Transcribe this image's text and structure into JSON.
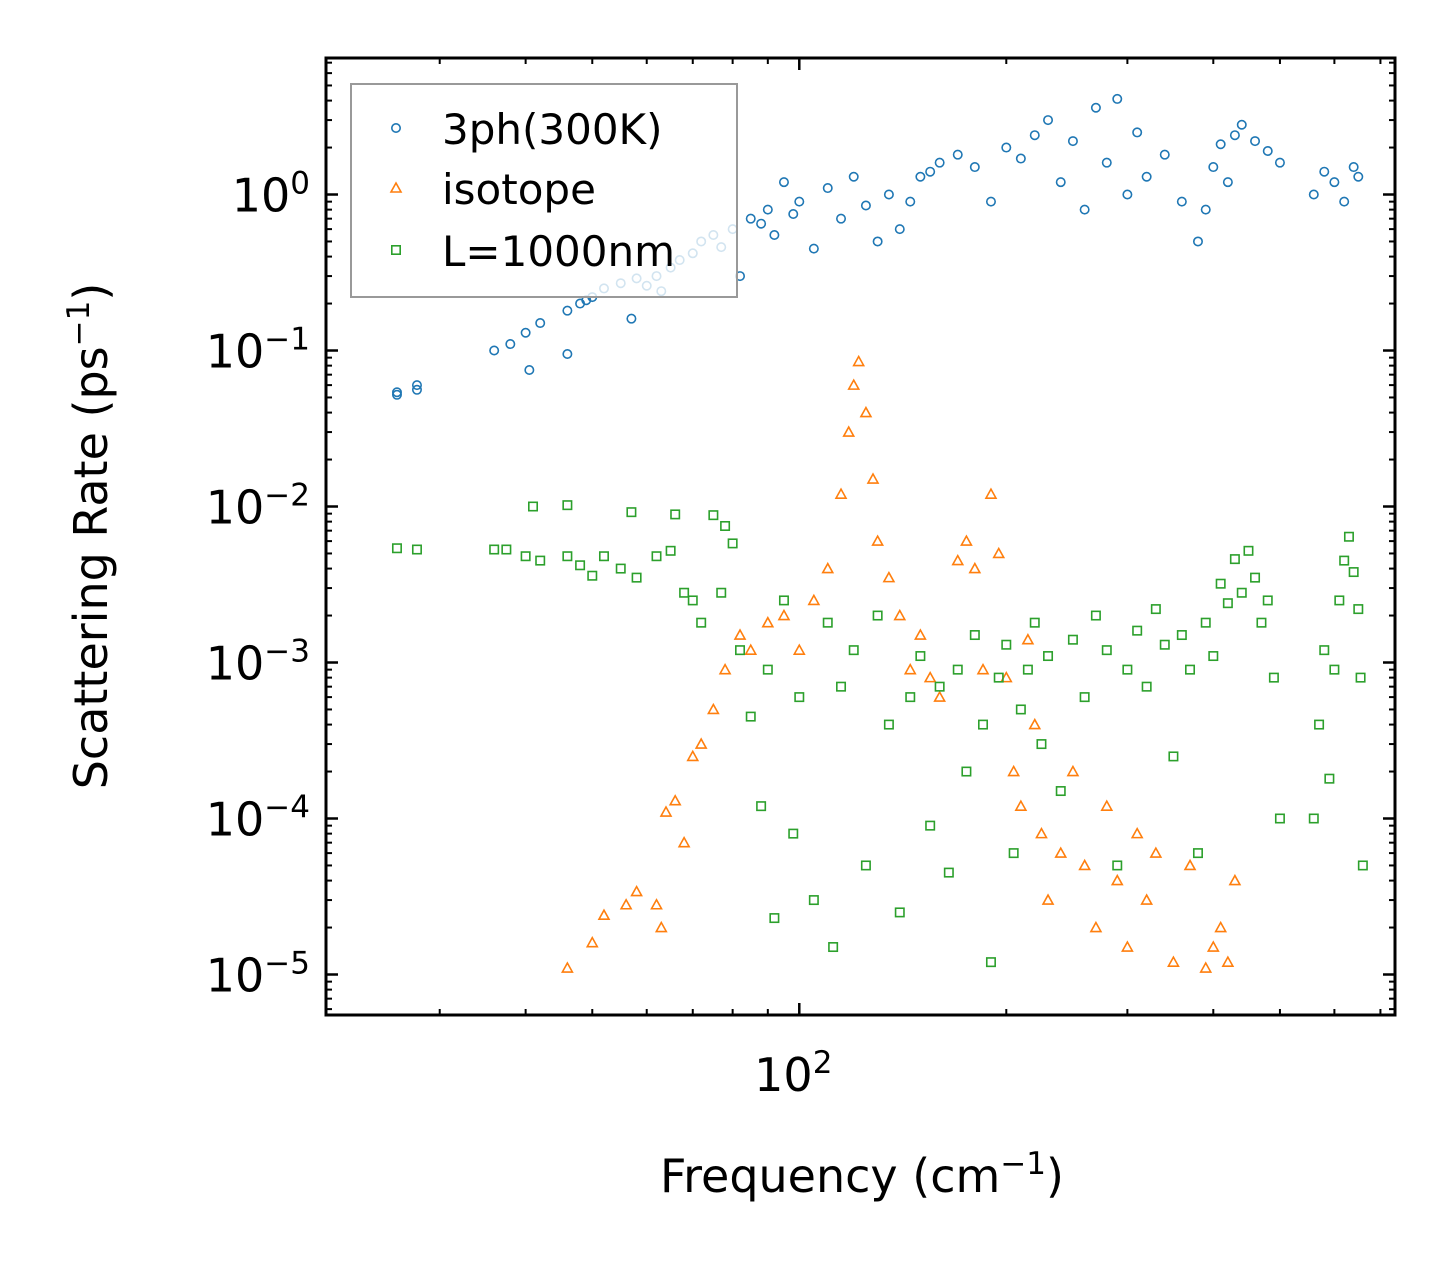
{
  "chart_data": {
    "type": "scatter",
    "title": "",
    "xlabel": "Frequency (cm",
    "xlabel_sup": "−1",
    "xlabel_tail": ")",
    "ylabel": "Scattering Rate (ps",
    "ylabel_sup": "−1",
    "ylabel_tail": ")",
    "xscale": "log",
    "yscale": "log",
    "xlim": [
      20.5,
      735
    ],
    "ylim": [
      5.5e-06,
      7.5
    ],
    "grid": false,
    "legend_position": "top-left",
    "x_major_ticks": [
      {
        "base": "10",
        "exp": "2",
        "value": 100
      }
    ],
    "y_major_ticks": [
      {
        "base": "10",
        "exp": "0",
        "value": 1
      },
      {
        "base": "10",
        "exp": "−1",
        "value": 0.1
      },
      {
        "base": "10",
        "exp": "−2",
        "value": 0.01
      },
      {
        "base": "10",
        "exp": "−3",
        "value": 0.001
      },
      {
        "base": "10",
        "exp": "−4",
        "value": 0.0001
      },
      {
        "base": "10",
        "exp": "−5",
        "value": 1e-05
      }
    ],
    "series": [
      {
        "name": "3ph(300K)",
        "marker": "circle",
        "color": "#1f77b4",
        "points": [
          [
            26,
            0.052
          ],
          [
            26,
            0.054
          ],
          [
            27.8,
            0.056
          ],
          [
            27.8,
            0.06
          ],
          [
            36,
            0.1
          ],
          [
            38,
            0.11
          ],
          [
            40,
            0.13
          ],
          [
            40.5,
            0.075
          ],
          [
            42,
            0.15
          ],
          [
            46,
            0.18
          ],
          [
            46,
            0.095
          ],
          [
            48,
            0.2
          ],
          [
            49,
            0.21
          ],
          [
            50,
            0.22
          ],
          [
            52,
            0.25
          ],
          [
            55,
            0.27
          ],
          [
            57,
            0.16
          ],
          [
            58,
            0.29
          ],
          [
            60,
            0.26
          ],
          [
            62,
            0.3
          ],
          [
            63,
            0.24
          ],
          [
            65,
            0.34
          ],
          [
            67,
            0.38
          ],
          [
            70,
            0.42
          ],
          [
            72,
            0.5
          ],
          [
            75,
            0.55
          ],
          [
            77,
            0.46
          ],
          [
            80,
            0.6
          ],
          [
            82,
            0.3
          ],
          [
            85,
            0.7
          ],
          [
            88,
            0.65
          ],
          [
            90,
            0.8
          ],
          [
            92,
            0.55
          ],
          [
            95,
            1.2
          ],
          [
            98,
            0.75
          ],
          [
            100,
            0.9
          ],
          [
            105,
            0.45
          ],
          [
            110,
            1.1
          ],
          [
            115,
            0.7
          ],
          [
            120,
            1.3
          ],
          [
            125,
            0.85
          ],
          [
            130,
            0.5
          ],
          [
            135,
            1.0
          ],
          [
            140,
            0.6
          ],
          [
            145,
            0.9
          ],
          [
            150,
            1.3
          ],
          [
            155,
            1.4
          ],
          [
            160,
            1.6
          ],
          [
            170,
            1.8
          ],
          [
            180,
            1.5
          ],
          [
            190,
            0.9
          ],
          [
            200,
            2.0
          ],
          [
            210,
            1.7
          ],
          [
            220,
            2.4
          ],
          [
            230,
            3.0
          ],
          [
            240,
            1.2
          ],
          [
            250,
            2.2
          ],
          [
            260,
            0.8
          ],
          [
            270,
            3.6
          ],
          [
            280,
            1.6
          ],
          [
            290,
            4.1
          ],
          [
            300,
            1.0
          ],
          [
            310,
            2.5
          ],
          [
            320,
            1.3
          ],
          [
            340,
            1.8
          ],
          [
            360,
            0.9
          ],
          [
            380,
            0.5
          ],
          [
            390,
            0.8
          ],
          [
            400,
            1.5
          ],
          [
            410,
            2.1
          ],
          [
            420,
            1.2
          ],
          [
            430,
            2.4
          ],
          [
            440,
            2.8
          ],
          [
            460,
            2.2
          ],
          [
            480,
            1.9
          ],
          [
            500,
            1.6
          ],
          [
            560,
            1.0
          ],
          [
            580,
            1.4
          ],
          [
            600,
            1.2
          ],
          [
            620,
            0.9
          ],
          [
            640,
            1.5
          ],
          [
            650,
            1.3
          ]
        ]
      },
      {
        "name": "isotope",
        "marker": "triangle",
        "color": "#ff7f0e",
        "points": [
          [
            46,
            1.1e-05
          ],
          [
            50,
            1.6e-05
          ],
          [
            52,
            2.4e-05
          ],
          [
            56,
            2.8e-05
          ],
          [
            58,
            3.4e-05
          ],
          [
            62,
            2.8e-05
          ],
          [
            63,
            2e-05
          ],
          [
            64,
            0.00011
          ],
          [
            66,
            0.00013
          ],
          [
            68,
            7e-05
          ],
          [
            70,
            0.00025
          ],
          [
            72,
            0.0003
          ],
          [
            75,
            0.0005
          ],
          [
            78,
            0.0009
          ],
          [
            82,
            0.0015
          ],
          [
            85,
            0.0012
          ],
          [
            90,
            0.0018
          ],
          [
            95,
            0.002
          ],
          [
            100,
            0.0012
          ],
          [
            105,
            0.0025
          ],
          [
            110,
            0.004
          ],
          [
            115,
            0.012
          ],
          [
            118,
            0.03
          ],
          [
            120,
            0.06
          ],
          [
            122,
            0.085
          ],
          [
            125,
            0.04
          ],
          [
            128,
            0.015
          ],
          [
            130,
            0.006
          ],
          [
            135,
            0.0035
          ],
          [
            140,
            0.002
          ],
          [
            145,
            0.0009
          ],
          [
            150,
            0.0015
          ],
          [
            155,
            0.0008
          ],
          [
            160,
            0.0006
          ],
          [
            170,
            0.0045
          ],
          [
            175,
            0.006
          ],
          [
            180,
            0.004
          ],
          [
            185,
            0.0009
          ],
          [
            190,
            0.012
          ],
          [
            195,
            0.005
          ],
          [
            200,
            0.0008
          ],
          [
            205,
            0.0002
          ],
          [
            210,
            0.00012
          ],
          [
            215,
            0.0014
          ],
          [
            220,
            0.0004
          ],
          [
            225,
            8e-05
          ],
          [
            230,
            3e-05
          ],
          [
            240,
            6e-05
          ],
          [
            250,
            0.0002
          ],
          [
            260,
            5e-05
          ],
          [
            270,
            2e-05
          ],
          [
            280,
            0.00012
          ],
          [
            290,
            4e-05
          ],
          [
            300,
            1.5e-05
          ],
          [
            310,
            8e-05
          ],
          [
            320,
            3e-05
          ],
          [
            330,
            6e-05
          ],
          [
            350,
            1.2e-05
          ],
          [
            370,
            5e-05
          ],
          [
            390,
            1.1e-05
          ],
          [
            400,
            1.5e-05
          ],
          [
            410,
            2e-05
          ],
          [
            420,
            1.2e-05
          ],
          [
            430,
            4e-05
          ]
        ]
      },
      {
        "name": "L=1000nm",
        "marker": "square",
        "color": "#2ca02c",
        "points": [
          [
            26,
            0.0054
          ],
          [
            27.8,
            0.0053
          ],
          [
            36,
            0.0053
          ],
          [
            37.5,
            0.0053
          ],
          [
            40,
            0.0048
          ],
          [
            41,
            0.01
          ],
          [
            42,
            0.0045
          ],
          [
            46,
            0.0102
          ],
          [
            46,
            0.0048
          ],
          [
            48,
            0.0042
          ],
          [
            50,
            0.0036
          ],
          [
            52,
            0.0048
          ],
          [
            55,
            0.004
          ],
          [
            57,
            0.0092
          ],
          [
            58,
            0.0035
          ],
          [
            62,
            0.0048
          ],
          [
            65,
            0.0052
          ],
          [
            66,
            0.0089
          ],
          [
            68,
            0.0028
          ],
          [
            70,
            0.0025
          ],
          [
            72,
            0.0018
          ],
          [
            75,
            0.0088
          ],
          [
            77,
            0.0028
          ],
          [
            78,
            0.0075
          ],
          [
            80,
            0.0058
          ],
          [
            82,
            0.0012
          ],
          [
            85,
            0.00045
          ],
          [
            88,
            0.00012
          ],
          [
            90,
            0.0009
          ],
          [
            92,
            2.3e-05
          ],
          [
            95,
            0.0025
          ],
          [
            98,
            8e-05
          ],
          [
            100,
            0.0006
          ],
          [
            105,
            3e-05
          ],
          [
            110,
            0.0018
          ],
          [
            112,
            1.5e-05
          ],
          [
            115,
            0.0007
          ],
          [
            120,
            0.0012
          ],
          [
            125,
            5e-05
          ],
          [
            130,
            0.002
          ],
          [
            135,
            0.0004
          ],
          [
            140,
            2.5e-05
          ],
          [
            145,
            0.0006
          ],
          [
            150,
            0.0011
          ],
          [
            155,
            9e-05
          ],
          [
            160,
            0.0007
          ],
          [
            165,
            4.5e-05
          ],
          [
            170,
            0.0009
          ],
          [
            175,
            0.0002
          ],
          [
            180,
            0.0015
          ],
          [
            185,
            0.0004
          ],
          [
            190,
            1.2e-05
          ],
          [
            195,
            0.0008
          ],
          [
            200,
            0.0013
          ],
          [
            205,
            6e-05
          ],
          [
            210,
            0.0005
          ],
          [
            215,
            0.0009
          ],
          [
            220,
            0.0018
          ],
          [
            225,
            0.0003
          ],
          [
            230,
            0.0011
          ],
          [
            240,
            0.00015
          ],
          [
            250,
            0.0014
          ],
          [
            260,
            0.0006
          ],
          [
            270,
            0.002
          ],
          [
            280,
            0.0012
          ],
          [
            290,
            5e-05
          ],
          [
            300,
            0.0009
          ],
          [
            310,
            0.0016
          ],
          [
            320,
            0.0007
          ],
          [
            330,
            0.0022
          ],
          [
            340,
            0.0013
          ],
          [
            350,
            0.00025
          ],
          [
            360,
            0.0015
          ],
          [
            370,
            0.0009
          ],
          [
            380,
            6e-05
          ],
          [
            390,
            0.0018
          ],
          [
            400,
            0.0011
          ],
          [
            410,
            0.0032
          ],
          [
            420,
            0.0024
          ],
          [
            430,
            0.0046
          ],
          [
            440,
            0.0028
          ],
          [
            450,
            0.0052
          ],
          [
            460,
            0.0035
          ],
          [
            470,
            0.0018
          ],
          [
            480,
            0.0025
          ],
          [
            490,
            0.0008
          ],
          [
            500,
            0.0001
          ],
          [
            560,
            0.0001
          ],
          [
            570,
            0.0004
          ],
          [
            580,
            0.0012
          ],
          [
            590,
            0.00018
          ],
          [
            600,
            0.0009
          ],
          [
            610,
            0.0025
          ],
          [
            620,
            0.0045
          ],
          [
            630,
            0.0064
          ],
          [
            640,
            0.0038
          ],
          [
            650,
            0.0022
          ],
          [
            655,
            0.0008
          ],
          [
            660,
            5e-05
          ]
        ]
      }
    ]
  }
}
